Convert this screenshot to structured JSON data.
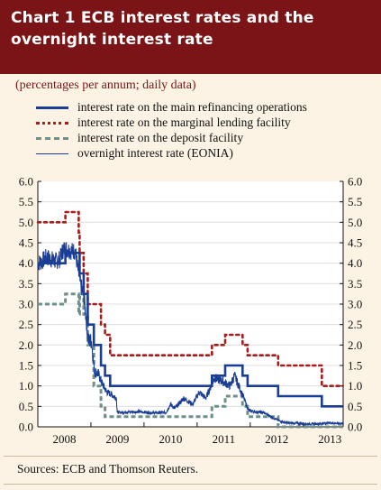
{
  "header": {
    "title_line1": "Chart 1 ECB interest rates and the",
    "title_line2": "overnight interest rate"
  },
  "subtitle": "(percentages per annum; daily data)",
  "source": "Sources: ECB and Thomson Reuters.",
  "colors": {
    "header_bg": "#7a1416",
    "background": "#fdf3e4",
    "mro": "#1a3e96",
    "marginal": "#a81c1c",
    "deposit": "#6f8f8a",
    "eonia": "#1a3e96"
  },
  "chart_data": {
    "type": "line",
    "title": "Chart 1 ECB interest rates and the overnight interest rate",
    "ylabel": "",
    "xlabel": "",
    "ylim": [
      0,
      6
    ],
    "xlim": [
      2008.0,
      2013.75
    ],
    "x_tick_labels": [
      "2008",
      "2009",
      "2010",
      "2011",
      "2012",
      "2013"
    ],
    "y_tick_labels": [
      "0.0",
      "0.5",
      "1.0",
      "1.5",
      "2.0",
      "2.5",
      "3.0",
      "3.5",
      "4.0",
      "4.5",
      "5.0",
      "5.5",
      "6.0"
    ],
    "y_axis_right": true,
    "legend_position": "top",
    "series": [
      {
        "name": "interest rate on the main refinancing operations",
        "style": "solid-thick",
        "step": true,
        "points": [
          [
            "2008-01-01",
            4.0
          ],
          [
            "2008-07-09",
            4.25
          ],
          [
            "2008-10-15",
            3.75
          ],
          [
            "2008-11-12",
            3.25
          ],
          [
            "2008-12-10",
            2.5
          ],
          [
            "2009-01-21",
            2.0
          ],
          [
            "2009-03-11",
            1.5
          ],
          [
            "2009-04-08",
            1.25
          ],
          [
            "2009-05-13",
            1.0
          ],
          [
            "2011-04-13",
            1.25
          ],
          [
            "2011-07-13",
            1.5
          ],
          [
            "2011-11-09",
            1.25
          ],
          [
            "2011-12-14",
            1.0
          ],
          [
            "2012-07-11",
            0.75
          ],
          [
            "2013-05-08",
            0.5
          ],
          [
            "2013-09-30",
            0.5
          ]
        ]
      },
      {
        "name": "interest rate on the marginal lending facility",
        "style": "dotted",
        "step": true,
        "points": [
          [
            "2008-01-01",
            5.0
          ],
          [
            "2008-07-09",
            5.25
          ],
          [
            "2008-10-09",
            4.75
          ],
          [
            "2008-10-15",
            4.25
          ],
          [
            "2008-11-12",
            3.75
          ],
          [
            "2008-12-10",
            3.0
          ],
          [
            "2009-01-21",
            3.0
          ],
          [
            "2009-03-11",
            2.5
          ],
          [
            "2009-04-08",
            2.25
          ],
          [
            "2009-05-13",
            1.75
          ],
          [
            "2011-04-13",
            2.0
          ],
          [
            "2011-07-13",
            2.25
          ],
          [
            "2011-11-09",
            2.0
          ],
          [
            "2011-12-14",
            1.75
          ],
          [
            "2012-07-11",
            1.5
          ],
          [
            "2013-05-08",
            1.0
          ],
          [
            "2013-09-30",
            1.0
          ]
        ]
      },
      {
        "name": "interest rate on the deposit facility",
        "style": "dashed-thick",
        "step": true,
        "points": [
          [
            "2008-01-01",
            3.0
          ],
          [
            "2008-07-09",
            3.25
          ],
          [
            "2008-10-09",
            2.75
          ],
          [
            "2008-10-15",
            3.25
          ],
          [
            "2008-11-12",
            2.75
          ],
          [
            "2008-12-10",
            2.0
          ],
          [
            "2009-01-21",
            1.0
          ],
          [
            "2009-03-11",
            0.5
          ],
          [
            "2009-04-08",
            0.25
          ],
          [
            "2011-04-13",
            0.5
          ],
          [
            "2011-07-13",
            0.75
          ],
          [
            "2011-11-09",
            0.5
          ],
          [
            "2011-12-14",
            0.25
          ],
          [
            "2012-07-11",
            0.0
          ],
          [
            "2013-09-30",
            0.0
          ]
        ]
      },
      {
        "name": "overnight interest rate (EONIA)",
        "style": "solid-thin",
        "step": false,
        "noisy": true,
        "points": [
          [
            "2008-01-01",
            4.0
          ],
          [
            "2008-02-01",
            4.05
          ],
          [
            "2008-03-01",
            4.15
          ],
          [
            "2008-04-01",
            4.1
          ],
          [
            "2008-05-01",
            4.05
          ],
          [
            "2008-06-01",
            4.1
          ],
          [
            "2008-06-25",
            4.35
          ],
          [
            "2008-07-15",
            4.35
          ],
          [
            "2008-08-15",
            4.3
          ],
          [
            "2008-09-15",
            4.3
          ],
          [
            "2008-10-01",
            3.9
          ],
          [
            "2008-10-20",
            3.5
          ],
          [
            "2008-11-15",
            3.15
          ],
          [
            "2008-12-15",
            2.1
          ],
          [
            "2009-01-05",
            2.1
          ],
          [
            "2009-01-25",
            1.35
          ],
          [
            "2009-02-20",
            1.3
          ],
          [
            "2009-03-20",
            1.05
          ],
          [
            "2009-04-20",
            0.85
          ],
          [
            "2009-05-20",
            0.8
          ],
          [
            "2009-06-25",
            0.7
          ],
          [
            "2009-07-01",
            0.35
          ],
          [
            "2009-09-01",
            0.36
          ],
          [
            "2009-12-01",
            0.37
          ],
          [
            "2010-03-01",
            0.34
          ],
          [
            "2010-06-01",
            0.35
          ],
          [
            "2010-07-01",
            0.55
          ],
          [
            "2010-08-01",
            0.45
          ],
          [
            "2010-10-01",
            0.7
          ],
          [
            "2010-12-01",
            0.55
          ],
          [
            "2011-01-15",
            0.85
          ],
          [
            "2011-03-01",
            0.7
          ],
          [
            "2011-05-01",
            1.2
          ],
          [
            "2011-07-01",
            1.1
          ],
          [
            "2011-08-15",
            1.0
          ],
          [
            "2011-09-15",
            1.25
          ],
          [
            "2011-11-01",
            0.85
          ],
          [
            "2011-12-21",
            0.4
          ],
          [
            "2012-02-01",
            0.37
          ],
          [
            "2012-04-01",
            0.35
          ],
          [
            "2012-07-15",
            0.15
          ],
          [
            "2012-09-01",
            0.1
          ],
          [
            "2012-12-01",
            0.08
          ],
          [
            "2013-03-01",
            0.07
          ],
          [
            "2013-05-15",
            0.08
          ],
          [
            "2013-07-01",
            0.1
          ],
          [
            "2013-09-01",
            0.08
          ],
          [
            "2013-09-30",
            0.09
          ]
        ]
      }
    ]
  }
}
